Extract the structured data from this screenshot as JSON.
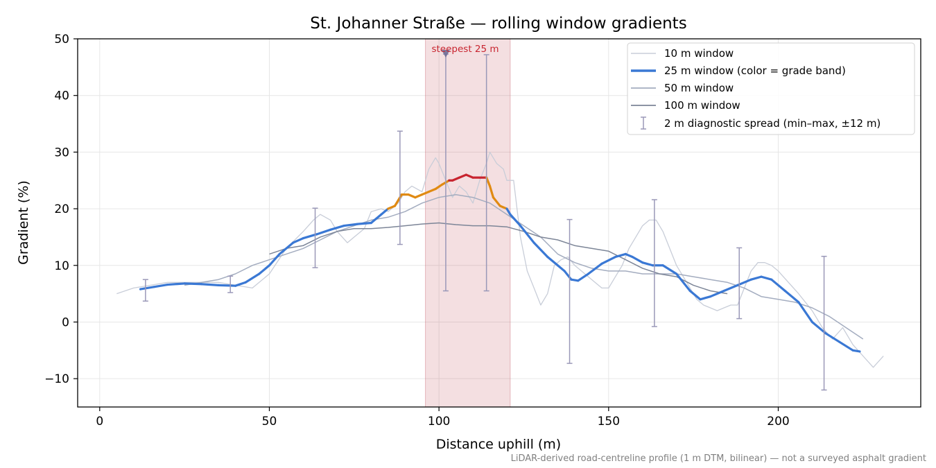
{
  "chart_data": {
    "type": "line",
    "title": "St. Johanner Straße — rolling window gradients",
    "xlabel": "Distance uphill (m)",
    "ylabel": "Gradient (%)",
    "xlim": [
      -6.5,
      242
    ],
    "ylim": [
      -15,
      50
    ],
    "xticks": [
      0,
      50,
      100,
      150,
      200
    ],
    "yticks": [
      -10,
      0,
      10,
      20,
      30,
      40,
      50
    ],
    "x_tick_labels": [
      "0",
      "50",
      "100",
      "150",
      "200"
    ],
    "y_tick_labels": [
      "−10",
      "0",
      "10",
      "20",
      "30",
      "40",
      "50"
    ],
    "grid": true,
    "legend_position": "top-right",
    "footnote": "LiDAR-derived road-centreline profile (1 m DTM, bilinear) — not a surveyed asphalt gradient",
    "highlight": {
      "x_start": 96,
      "x_end": 121,
      "label": "steepest 25 m",
      "marker_x": 102,
      "marker_y": 47.3,
      "color": "#c44e5a"
    },
    "series": [
      {
        "name": "10 m window",
        "color": "#c8cdd8",
        "width": 1.3,
        "x": [
          5,
          10,
          15,
          20,
          25,
          30,
          35,
          40,
          45,
          50,
          55,
          60,
          63,
          65,
          68,
          70,
          73,
          75,
          78,
          80,
          83,
          85,
          88,
          90,
          92,
          95,
          97,
          99,
          100,
          102,
          104,
          106,
          108,
          110,
          112,
          114,
          115,
          117,
          119,
          120,
          122,
          124,
          126,
          128,
          130,
          132,
          134,
          136,
          138,
          140,
          142,
          144,
          146,
          148,
          150,
          152,
          154,
          156,
          158,
          160,
          162,
          164,
          166,
          168,
          170,
          172,
          174,
          176,
          178,
          180,
          182,
          184,
          186,
          188,
          190,
          192,
          194,
          196,
          198,
          200,
          203,
          206,
          210,
          213,
          216,
          219,
          222,
          225,
          228,
          231
        ],
        "y": [
          5,
          6,
          6.5,
          7,
          7,
          7,
          7,
          6.5,
          6,
          8.5,
          13,
          16,
          18,
          19,
          18,
          16,
          14,
          15,
          16.5,
          19.5,
          20,
          19.5,
          21,
          23,
          24,
          23,
          27,
          29,
          28,
          25,
          22,
          24,
          23,
          21,
          25,
          28,
          30,
          28,
          27,
          25,
          25,
          15,
          9,
          6,
          3,
          5,
          10,
          11,
          11.5,
          10,
          9,
          8,
          7,
          6,
          6,
          8,
          10,
          13,
          15,
          17,
          18,
          18,
          16,
          13,
          10,
          8,
          6,
          4,
          3,
          2.5,
          2,
          2.5,
          3,
          3,
          6,
          9,
          10.5,
          10.5,
          10,
          9,
          7,
          5,
          2,
          -1,
          -3,
          -1,
          -4,
          -6,
          -8,
          -6
        ]
      },
      {
        "name": "25 m window (color = grade band)",
        "color": "#3a78d4",
        "width": 3.2,
        "banded": true,
        "band_colors": {
          "low": "#3a78d4",
          "mid": "#e08a12",
          "high": "#c8242f"
        },
        "x": [
          12,
          16,
          20,
          25,
          30,
          35,
          40,
          43,
          47,
          50,
          53,
          57,
          60,
          64,
          68,
          72,
          76,
          80,
          83,
          85,
          87,
          89,
          91,
          93,
          95,
          97,
          99,
          101,
          103,
          104,
          106,
          108,
          110,
          112,
          114,
          115,
          116,
          118,
          120,
          121,
          124,
          128,
          132,
          135,
          137,
          139,
          141,
          144,
          148,
          152,
          155,
          157,
          160,
          163,
          166,
          170,
          174,
          177,
          180,
          184,
          188,
          192,
          195,
          198,
          202,
          206,
          210,
          214,
          218,
          222,
          224
        ],
        "y": [
          5.8,
          6.2,
          6.6,
          6.8,
          6.7,
          6.5,
          6.4,
          7,
          8.5,
          10,
          12,
          14,
          14.8,
          15.5,
          16.3,
          17,
          17.3,
          17.5,
          19,
          20,
          20.5,
          22.5,
          22.5,
          22,
          22.5,
          23,
          23.5,
          24.3,
          25,
          25,
          25.5,
          26,
          25.5,
          25.5,
          25.5,
          24,
          22,
          20.5,
          20,
          19,
          17,
          14,
          11.5,
          10,
          9,
          7.5,
          7.3,
          8.5,
          10.3,
          11.5,
          12,
          11.5,
          10.5,
          10,
          10,
          8.5,
          5.5,
          4,
          4.5,
          5.5,
          6.5,
          7.5,
          8,
          7.5,
          5.5,
          3.5,
          0,
          -2,
          -3.5,
          -5,
          -5.2
        ]
      },
      {
        "name": "50 m window",
        "color": "#a3acbf",
        "width": 1.5,
        "x": [
          25,
          30,
          35,
          40,
          45,
          50,
          55,
          60,
          65,
          70,
          75,
          80,
          85,
          90,
          95,
          100,
          105,
          110,
          115,
          120,
          125,
          130,
          135,
          140,
          145,
          150,
          155,
          160,
          165,
          170,
          175,
          180,
          185,
          190,
          195,
          200,
          205,
          210,
          215,
          220,
          225
        ],
        "y": [
          6.5,
          7,
          7.5,
          8.5,
          10,
          11,
          12,
          13,
          14.5,
          16,
          17,
          18,
          18.5,
          19.5,
          21,
          22,
          22.5,
          22,
          21,
          19,
          17,
          15,
          12,
          10.5,
          9.5,
          9,
          9,
          8.5,
          8.5,
          8.5,
          8,
          7.5,
          7,
          6,
          4.5,
          4,
          3.5,
          2.5,
          1,
          -1,
          -3
        ]
      },
      {
        "name": "100 m window",
        "color": "#7c8597",
        "width": 1.5,
        "x": [
          50,
          55,
          60,
          65,
          70,
          75,
          80,
          85,
          90,
          95,
          100,
          105,
          110,
          115,
          120,
          125,
          130,
          135,
          140,
          145,
          150,
          155,
          160,
          165,
          170,
          175,
          180,
          185
        ],
        "y": [
          12,
          13,
          13.5,
          15,
          16,
          16.5,
          16.5,
          16.7,
          17,
          17.3,
          17.5,
          17.2,
          17,
          17,
          16.8,
          16,
          15,
          14.5,
          13.5,
          13,
          12.5,
          11,
          9.5,
          8.5,
          8,
          6.5,
          5.5,
          5
        ]
      }
    ],
    "error_bars": {
      "name": "2 m diagnostic spread (min–max, ±12 m)",
      "color": "#9a98b8",
      "points": [
        {
          "x": 13.5,
          "low": 3.7,
          "high": 7.5
        },
        {
          "x": 38.5,
          "low": 5.2,
          "high": 8.1
        },
        {
          "x": 63.5,
          "low": 9.6,
          "high": 20.1
        },
        {
          "x": 88.5,
          "low": 13.7,
          "high": 33.7
        },
        {
          "x": 102,
          "low": 5.5,
          "high": 47.3
        },
        {
          "x": 114,
          "low": 5.5,
          "high": 47.2
        },
        {
          "x": 138.5,
          "low": -7.3,
          "high": 18.1
        },
        {
          "x": 163.5,
          "low": -0.8,
          "high": 21.6
        },
        {
          "x": 188.5,
          "low": 0.6,
          "high": 13.1
        },
        {
          "x": 213.5,
          "low": -12,
          "high": 11.6
        }
      ]
    }
  }
}
